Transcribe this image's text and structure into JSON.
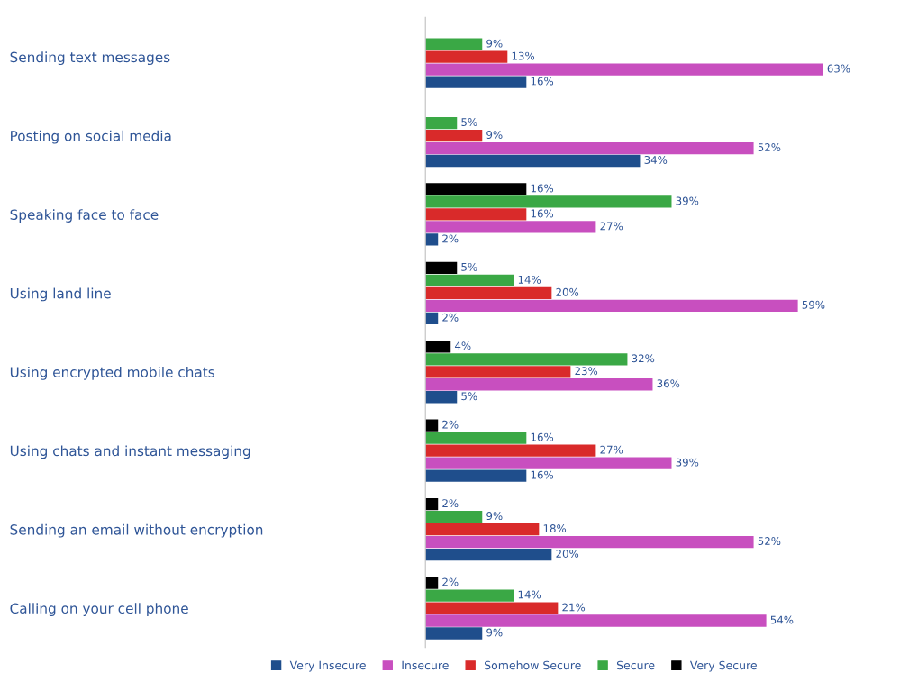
{
  "chart_data": {
    "type": "bar",
    "orientation": "horizontal",
    "legend": "bottom",
    "categories": [
      "Sending text messages",
      "Posting on social media",
      "Speaking face to face",
      "Using land line",
      "Using encrypted mobile chats",
      "Using chats and instant messaging",
      "Sending an email without encryption",
      "Calling on your cell phone"
    ],
    "series": [
      {
        "name": "Very Insecure",
        "color": "#1f4e8c",
        "values": [
          16,
          34,
          2,
          2,
          5,
          16,
          20,
          9
        ],
        "value_labels": [
          "16%",
          "34%",
          "2%",
          "2%",
          "5%",
          "16%",
          "20%",
          "9%"
        ]
      },
      {
        "name": "Insecure",
        "color": "#c84fbf",
        "values": [
          63,
          52,
          27,
          59,
          36,
          39,
          52,
          54
        ],
        "value_labels": [
          "63%",
          "52%",
          "27%",
          "59%",
          "36%",
          "39%",
          "52%",
          "54%"
        ]
      },
      {
        "name": "Somehow Secure",
        "color": "#d92a2a",
        "values": [
          13,
          9,
          16,
          20,
          23,
          27,
          18,
          21
        ],
        "value_labels": [
          "13%",
          "9%",
          "16%",
          "20%",
          "23%",
          "27%",
          "18%",
          "21%"
        ]
      },
      {
        "name": "Secure",
        "color": "#3aa845",
        "values": [
          9,
          5,
          39,
          14,
          32,
          16,
          9,
          14
        ],
        "value_labels": [
          "9%",
          "5%",
          "39%",
          "14%",
          "32%",
          "16%",
          "9%",
          "14%"
        ]
      },
      {
        "name": "Very Secure",
        "color": "#000000",
        "values": [
          null,
          null,
          16,
          5,
          4,
          2,
          2,
          2
        ],
        "value_labels": [
          null,
          null,
          "16%",
          "5%",
          "4%",
          "2%",
          "2%",
          "2%"
        ]
      }
    ]
  }
}
